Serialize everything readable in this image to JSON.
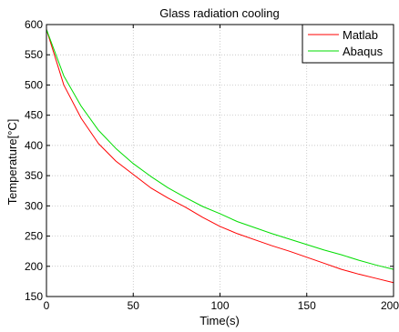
{
  "chart_data": {
    "type": "line",
    "title": "Glass radiation cooling",
    "xlabel": "Time(s)",
    "ylabel": "Temperature[°C]",
    "xlim": [
      0,
      200
    ],
    "ylim": [
      150,
      600
    ],
    "xticks": [
      0,
      50,
      100,
      150,
      200
    ],
    "yticks": [
      150,
      200,
      250,
      300,
      350,
      400,
      450,
      500,
      550,
      600
    ],
    "grid": true,
    "legend_position": "top-right",
    "x": [
      0,
      10,
      20,
      30,
      40,
      50,
      60,
      70,
      80,
      90,
      100,
      110,
      120,
      130,
      140,
      150,
      160,
      170,
      180,
      190,
      200
    ],
    "series": [
      {
        "name": "Matlab",
        "color": "#ff0000",
        "values": [
          592,
          500,
          445,
          403,
          374,
          352,
          330,
          313,
          298,
          281,
          266,
          254,
          244,
          234,
          225,
          215,
          205,
          195,
          187,
          180,
          173
        ]
      },
      {
        "name": "Abaqus",
        "color": "#00dd00",
        "values": [
          592,
          515,
          465,
          425,
          395,
          370,
          349,
          330,
          314,
          299,
          287,
          274,
          264,
          254,
          245,
          236,
          227,
          219,
          210,
          202,
          195
        ]
      }
    ]
  }
}
